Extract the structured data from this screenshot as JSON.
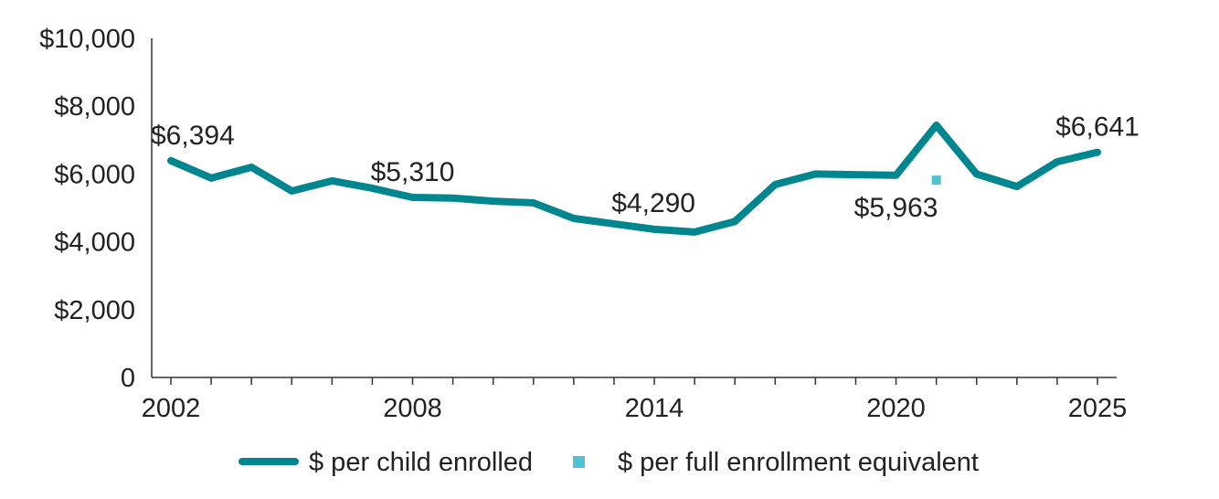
{
  "chart_data": {
    "type": "line",
    "title": "",
    "xlabel": "",
    "ylabel": "",
    "ylim": [
      0,
      10000
    ],
    "xlim": [
      2002,
      2025
    ],
    "y_ticks": [
      0,
      2000,
      4000,
      6000,
      8000,
      10000
    ],
    "y_tick_labels": [
      "0",
      "$2,000",
      "$4,000",
      "$6,000",
      "$8,000",
      "$10,000"
    ],
    "x_ticks": [
      2002,
      2008,
      2014,
      2020,
      2025
    ],
    "x_tick_labels": [
      "2002",
      "2008",
      "2014",
      "2020",
      "2025"
    ],
    "grid": false,
    "legend_position": "bottom",
    "series": [
      {
        "name": "$ per child enrolled",
        "color": "#00868F",
        "x": [
          2002,
          2003,
          2004,
          2005,
          2006,
          2007,
          2008,
          2009,
          2010,
          2011,
          2012,
          2013,
          2014,
          2015,
          2016,
          2017,
          2018,
          2019,
          2020,
          2021,
          2022,
          2023,
          2024,
          2025
        ],
        "values": [
          6394,
          5880,
          6200,
          5500,
          5800,
          5580,
          5310,
          5290,
          5200,
          5150,
          4690,
          4530,
          4370,
          4290,
          4600,
          5690,
          6000,
          5980,
          5963,
          7440,
          6000,
          5630,
          6360,
          6641
        ]
      },
      {
        "name": "$ per full enrollment equivalent",
        "color": "#4FC3CF",
        "x": [
          2021
        ],
        "values": [
          5820
        ]
      }
    ],
    "annotations": [
      {
        "text": "$6,394",
        "x": 2002,
        "y": 6394,
        "pos": "above"
      },
      {
        "text": "$5,310",
        "x": 2008,
        "y": 5310,
        "pos": "above"
      },
      {
        "text": "$4,290",
        "x": 2015,
        "y": 4290,
        "pos": "above-left"
      },
      {
        "text": "$5,963",
        "x": 2020,
        "y": 5963,
        "pos": "below"
      },
      {
        "text": "$6,641",
        "x": 2025,
        "y": 6641,
        "pos": "above"
      }
    ]
  }
}
